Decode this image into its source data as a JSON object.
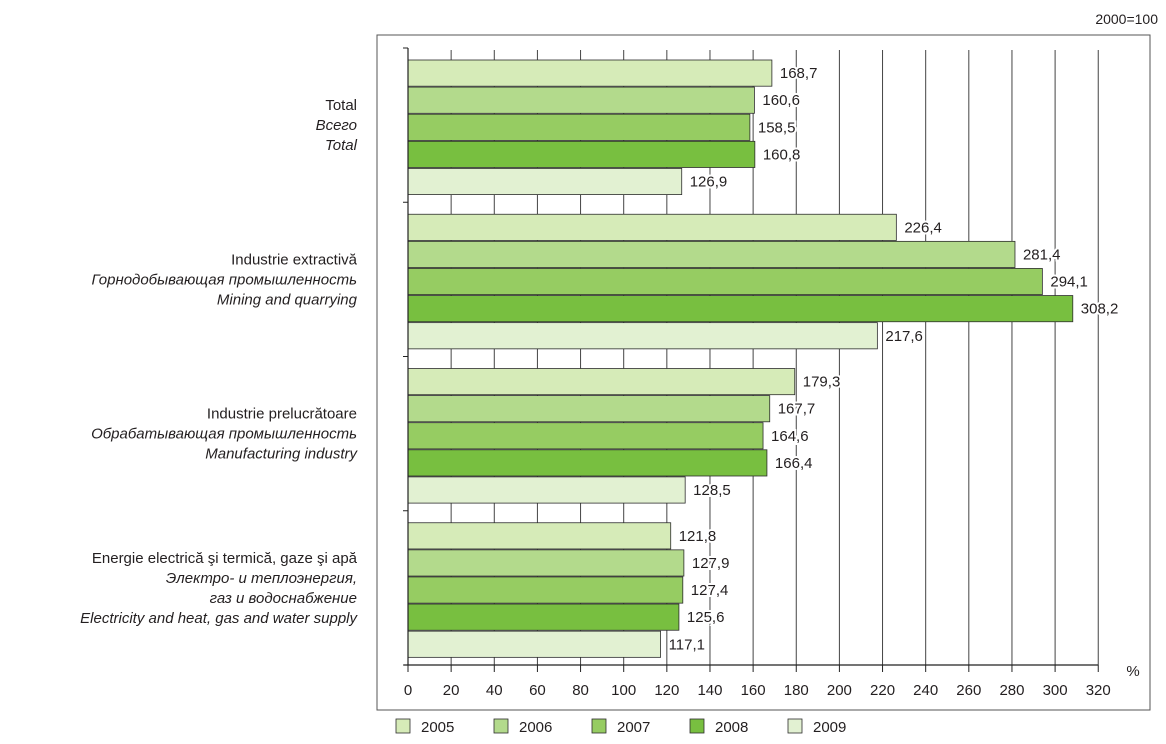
{
  "chart_data": {
    "type": "bar",
    "orientation": "horizontal",
    "note": "2000=100",
    "unit_label": "%",
    "xlim": [
      0,
      320
    ],
    "x_ticks": [
      "0",
      "20",
      "40",
      "60",
      "80",
      "100",
      "120",
      "140",
      "160",
      "180",
      "200",
      "220",
      "240",
      "260",
      "280",
      "300",
      "320"
    ],
    "grid": true,
    "legend_position": "bottom",
    "categories": [
      {
        "lines": [
          {
            "text": "Total",
            "italic": false
          },
          {
            "text": "Всего",
            "italic": true
          },
          {
            "text": "Total",
            "italic": true
          }
        ]
      },
      {
        "lines": [
          {
            "text": "Industrie extractivă",
            "italic": false
          },
          {
            "text": "Горнодобывающая промышленность",
            "italic": true
          },
          {
            "text": "Mining and quarrying",
            "italic": true
          }
        ]
      },
      {
        "lines": [
          {
            "text": "Industrie prelucrătoare",
            "italic": false
          },
          {
            "text": "Обрабатывающая промышленность",
            "italic": true
          },
          {
            "text": "Manufacturing industry",
            "italic": true
          }
        ]
      },
      {
        "lines": [
          {
            "text": "Energie electrică şi termică, gaze şi apă",
            "italic": false
          },
          {
            "text": "Электро- и теплоэнергия,",
            "italic": true
          },
          {
            "text": "газ и водоснабжение",
            "italic": true
          },
          {
            "text": "Electricity and heat, gas and water supply",
            "italic": true
          }
        ]
      }
    ],
    "series": [
      {
        "name": "2005",
        "color": "#d6ebb8",
        "values": [
          168.7,
          226.4,
          179.3,
          121.8
        ],
        "labels": [
          "168,7",
          "226,4",
          "179,3",
          "121,8"
        ]
      },
      {
        "name": "2006",
        "color": "#b3da8c",
        "values": [
          160.6,
          281.4,
          167.7,
          127.9
        ],
        "labels": [
          "160,6",
          "281,4",
          "167,7",
          "127,9"
        ]
      },
      {
        "name": "2007",
        "color": "#96cc62",
        "values": [
          158.5,
          294.1,
          164.6,
          127.4
        ],
        "labels": [
          "158,5",
          "294,1",
          "164,6",
          "127,4"
        ]
      },
      {
        "name": "2008",
        "color": "#78bf40",
        "values": [
          160.8,
          308.2,
          166.4,
          125.6
        ],
        "labels": [
          "160,8",
          "308,2",
          "166,4",
          "125,6"
        ]
      },
      {
        "name": "2009",
        "color": "#e2f1d2",
        "values": [
          126.9,
          217.6,
          128.5,
          117.1
        ],
        "labels": [
          "126,9",
          "217,6",
          "128,5",
          "117,1"
        ]
      }
    ]
  }
}
